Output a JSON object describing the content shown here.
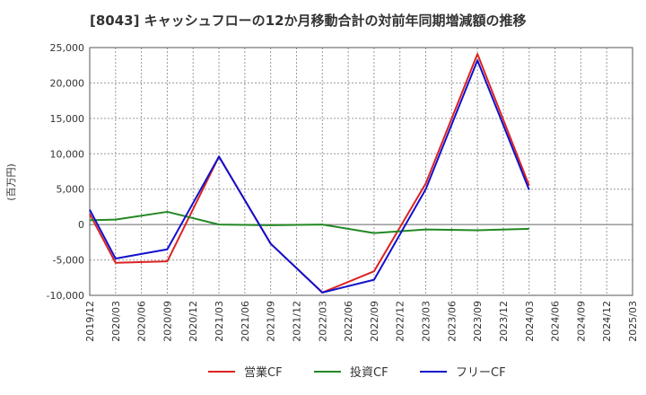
{
  "chart_data": {
    "type": "line",
    "title": "[8043]  キャッシュフローの12か月移動合計の対前年同期増減額の推移",
    "ylabel": "(百万円)",
    "xlabel": "",
    "ylim": [
      -10000,
      25000
    ],
    "y_ticks": [
      25000,
      20000,
      15000,
      10000,
      5000,
      0,
      -5000,
      -10000
    ],
    "y_tick_labels": [
      "25,000",
      "20,000",
      "15,000",
      "10,000",
      "5,000",
      "0",
      "-5,000",
      "-10,000"
    ],
    "categories": [
      "2019/12",
      "2020/03",
      "2020/06",
      "2020/09",
      "2020/12",
      "2021/03",
      "2021/06",
      "2021/09",
      "2021/12",
      "2022/03",
      "2022/06",
      "2022/09",
      "2022/12",
      "2023/03",
      "2023/06",
      "2023/09",
      "2023/12",
      "2024/03",
      "2024/06",
      "2024/09",
      "2024/12",
      "2025/03"
    ],
    "grid": true,
    "legend_position": "bottom",
    "series": [
      {
        "name": "営業CF",
        "color": "#dd2222",
        "values": [
          1500,
          -5400,
          null,
          -5200,
          null,
          9600,
          null,
          -2700,
          null,
          -9600,
          null,
          -6600,
          null,
          5800,
          null,
          24100,
          null,
          5500,
          null,
          null,
          null,
          null
        ]
      },
      {
        "name": "投資CF",
        "color": "#228822",
        "values": [
          600,
          700,
          null,
          1800,
          null,
          0,
          null,
          -100,
          null,
          0,
          null,
          -1200,
          null,
          -700,
          null,
          -800,
          null,
          -600,
          null,
          null,
          null,
          null
        ]
      },
      {
        "name": "フリーCF",
        "color": "#1111cc",
        "values": [
          2100,
          -4800,
          null,
          -3500,
          null,
          9600,
          null,
          -2700,
          null,
          -9600,
          null,
          -7800,
          null,
          5000,
          null,
          23200,
          null,
          4900,
          null,
          null,
          null,
          null
        ]
      }
    ]
  }
}
